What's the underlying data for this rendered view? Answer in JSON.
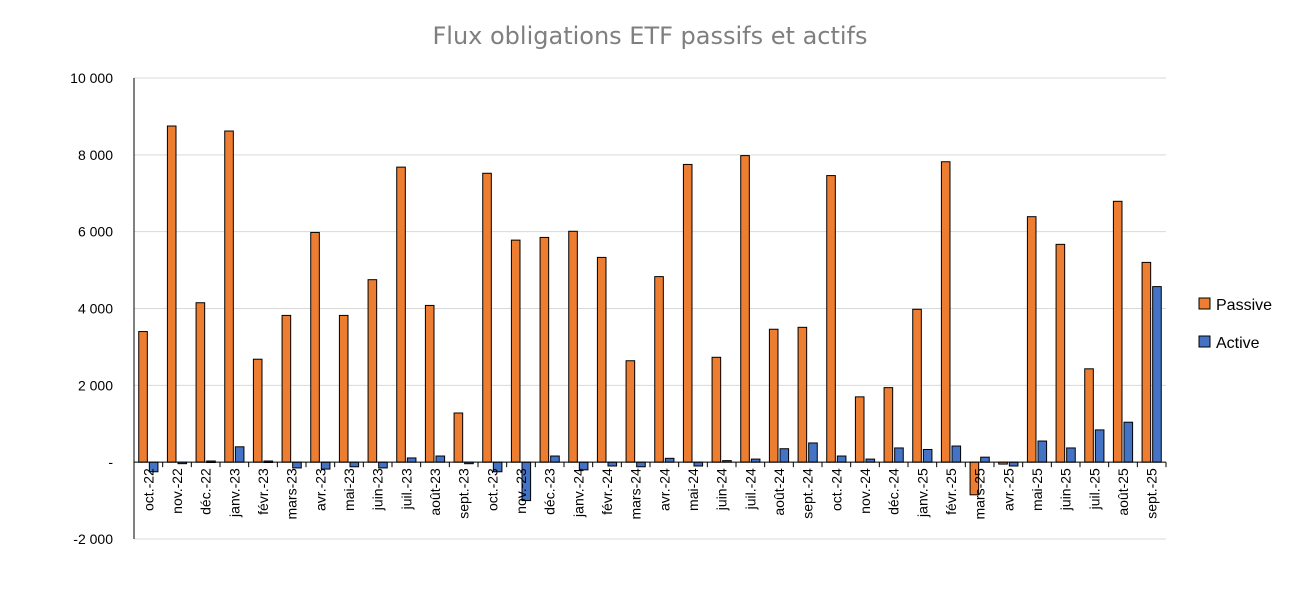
{
  "chart_data": {
    "type": "bar",
    "title": "Flux obligations ETF passifs et actifs",
    "xlabel": "",
    "ylabel": "",
    "ylim": [
      -2000,
      10000
    ],
    "yticks": [
      -2000,
      0,
      2000,
      4000,
      6000,
      8000,
      10000
    ],
    "ytick_labels": [
      "-2 000",
      "-",
      "2 000",
      "4 000",
      "6 000",
      "8 000",
      "10 000"
    ],
    "grid": true,
    "legend_position": "right",
    "categories": [
      "oct.-22",
      "nov.-22",
      "déc.-22",
      "janv.-23",
      "févr.-23",
      "mars-23",
      "avr.-23",
      "mai-23",
      "juin-23",
      "juil.-23",
      "août-23",
      "sept.-23",
      "oct.-23",
      "nov.-23",
      "déc.-23",
      "janv.-24",
      "févr.-24",
      "mars-24",
      "avr.-24",
      "mai-24",
      "juin-24",
      "juil.-24",
      "août-24",
      "sept.-24",
      "oct.-24",
      "nov.-24",
      "déc.-24",
      "janv.-25",
      "févr.-25",
      "mars-25",
      "avr.-25",
      "mai-25",
      "juin-25",
      "juil.-25",
      "août-25",
      "sept.-25"
    ],
    "series": [
      {
        "name": "Passive",
        "color": "#ED7D31",
        "values": [
          3400,
          8750,
          4150,
          8620,
          2680,
          3820,
          5980,
          3820,
          4750,
          7680,
          4080,
          1280,
          7520,
          5780,
          5850,
          6010,
          5330,
          2640,
          4830,
          7750,
          2730,
          7980,
          3460,
          3510,
          7460,
          1700,
          1940,
          3980,
          7820,
          -850,
          -50,
          6390,
          5670,
          2430,
          6790,
          5200
        ]
      },
      {
        "name": "Active",
        "color": "#4472C4",
        "values": [
          -250,
          -30,
          30,
          400,
          30,
          -150,
          -180,
          -120,
          -150,
          110,
          160,
          -40,
          -250,
          -1000,
          160,
          -200,
          -100,
          -120,
          100,
          -100,
          40,
          80,
          350,
          500,
          160,
          80,
          370,
          330,
          420,
          130,
          -100,
          550,
          370,
          840,
          1040,
          4570
        ]
      }
    ]
  }
}
